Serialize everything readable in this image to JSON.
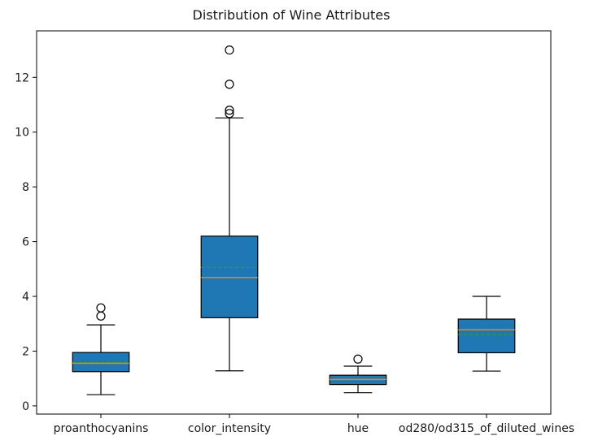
{
  "chart_data": {
    "type": "box",
    "title": "Distribution of Wine Attributes",
    "xlabel": "",
    "ylabel": "",
    "ylim": [
      -0.3,
      13.7
    ],
    "yticks": [
      0,
      2,
      4,
      6,
      8,
      10,
      12
    ],
    "grid": false,
    "categories": [
      "proanthocyanins",
      "color_intensity",
      "hue",
      "od280/od315_of_diluted_wines"
    ],
    "boxes": [
      {
        "label": "proanthocyanins",
        "whisker_low": 0.41,
        "q1": 1.25,
        "median": 1.555,
        "mean": 1.59,
        "q3": 1.95,
        "whisker_high": 2.96,
        "outliers": [
          3.28,
          3.58
        ]
      },
      {
        "label": "color_intensity",
        "whisker_low": 1.28,
        "q1": 3.22,
        "median": 4.69,
        "mean": 5.06,
        "q3": 6.2,
        "whisker_high": 10.52,
        "outliers": [
          10.68,
          10.8,
          11.75,
          13.0
        ]
      },
      {
        "label": "hue",
        "whisker_low": 0.48,
        "q1": 0.78,
        "median": 0.965,
        "mean": 0.957,
        "q3": 1.12,
        "whisker_high": 1.45,
        "outliers": [
          1.71
        ]
      },
      {
        "label": "od280/od315_of_diluted_wines",
        "whisker_low": 1.27,
        "q1": 1.94,
        "median": 2.78,
        "mean": 2.61,
        "q3": 3.17,
        "whisker_high": 4.0,
        "outliers": []
      }
    ],
    "colors": {
      "box_fill": "#1f77b4",
      "median_line": "#ff7f0e",
      "mean_line": "#2ca02c",
      "lines": "#000000"
    }
  }
}
